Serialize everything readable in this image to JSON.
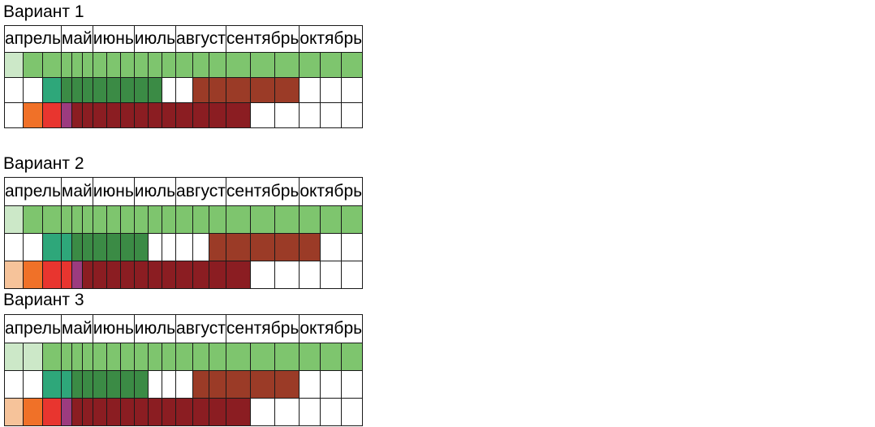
{
  "colors": {
    "w": "#ffffff",
    "lg": "#cce8c8",
    "g": "#7ec56e",
    "t": "#2ea77a",
    "dg": "#3b8b45",
    "br": "#9b3b27",
    "pe": "#f6c39a",
    "or": "#f07128",
    "rd": "#e8352f",
    "pu": "#9c3b7f",
    "dr": "#8b1d22"
  },
  "variants": [
    {
      "title": "Вариант 1",
      "months": [
        {
          "label": "апрель",
          "span": 3
        },
        {
          "label": "май",
          "span": 3
        },
        {
          "label": "июнь",
          "span": 3
        },
        {
          "label": "июль",
          "span": 3
        },
        {
          "label": "август",
          "span": 3
        },
        {
          "label": "сентябрь",
          "span": 3
        },
        {
          "label": "октябрь",
          "span": 3
        }
      ],
      "rows": [
        [
          "lg",
          "g",
          "g",
          "g",
          "g",
          "g",
          "g",
          "g",
          "g",
          "g",
          "g",
          "g",
          "g",
          "g",
          "g",
          "g",
          "g",
          "g",
          "g",
          "g",
          "g"
        ],
        [
          "w",
          "w",
          "t",
          "dg",
          "dg",
          "dg",
          "dg",
          "dg",
          "dg",
          "dg",
          "dg",
          "w",
          "w",
          "br",
          "br",
          "br",
          "br",
          "br",
          "w",
          "w",
          "w"
        ],
        [
          "w",
          "or",
          "rd",
          "pu",
          "dr",
          "dr",
          "dr",
          "dr",
          "dr",
          "dr",
          "dr",
          "dr",
          "dr",
          "dr",
          "dr",
          "dr",
          "w",
          "w",
          "w",
          "w",
          "w"
        ]
      ]
    },
    {
      "title": "Вариант 2",
      "months": [
        {
          "label": "апрель",
          "span": 3
        },
        {
          "label": "май",
          "span": 3
        },
        {
          "label": "июнь",
          "span": 3
        },
        {
          "label": "июль",
          "span": 3
        },
        {
          "label": "август",
          "span": 3
        },
        {
          "label": "сентябрь",
          "span": 3
        },
        {
          "label": "октябрь",
          "span": 3
        }
      ],
      "rows": [
        [
          "lg",
          "g",
          "g",
          "g",
          "g",
          "g",
          "g",
          "g",
          "g",
          "g",
          "g",
          "g",
          "g",
          "g",
          "g",
          "g",
          "g",
          "g",
          "g",
          "g",
          "g"
        ],
        [
          "w",
          "w",
          "t",
          "t",
          "dg",
          "dg",
          "dg",
          "dg",
          "dg",
          "dg",
          "w",
          "w",
          "w",
          "w",
          "br",
          "br",
          "br",
          "br",
          "br",
          "w",
          "w"
        ],
        [
          "pe",
          "or",
          "rd",
          "rd",
          "pu",
          "dr",
          "dr",
          "dr",
          "dr",
          "dr",
          "dr",
          "dr",
          "dr",
          "dr",
          "dr",
          "dr",
          "w",
          "w",
          "w",
          "w",
          "w"
        ]
      ]
    },
    {
      "title": "Вариант 3",
      "months": [
        {
          "label": "апрель",
          "span": 3
        },
        {
          "label": "май",
          "span": 3
        },
        {
          "label": "июнь",
          "span": 3
        },
        {
          "label": "июль",
          "span": 3
        },
        {
          "label": "август",
          "span": 3
        },
        {
          "label": "сентябрь",
          "span": 3
        },
        {
          "label": "октябрь",
          "span": 3
        }
      ],
      "rows": [
        [
          "lg",
          "lg",
          "g",
          "g",
          "g",
          "g",
          "g",
          "g",
          "g",
          "g",
          "g",
          "g",
          "g",
          "g",
          "g",
          "g",
          "g",
          "g",
          "g",
          "g",
          "g"
        ],
        [
          "w",
          "w",
          "t",
          "t",
          "dg",
          "dg",
          "dg",
          "dg",
          "dg",
          "dg",
          "w",
          "w",
          "w",
          "br",
          "br",
          "br",
          "br",
          "br",
          "w",
          "w",
          "w"
        ],
        [
          "pe",
          "or",
          "rd",
          "pu",
          "dr",
          "dr",
          "dr",
          "dr",
          "dr",
          "dr",
          "dr",
          "dr",
          "dr",
          "dr",
          "dr",
          "dr",
          "w",
          "w",
          "w",
          "w",
          "w"
        ]
      ]
    }
  ]
}
